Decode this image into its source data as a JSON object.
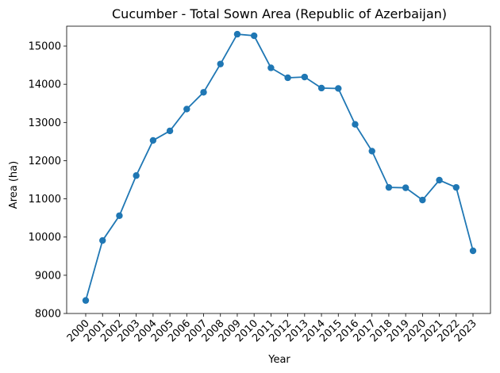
{
  "chart_data": {
    "type": "line",
    "title": "Cucumber - Total Sown Area (Republic of Azerbaijan)",
    "xlabel": "Year",
    "ylabel": "Area (ha)",
    "x": [
      "2000",
      "2001",
      "2002",
      "2003",
      "2004",
      "2005",
      "2006",
      "2007",
      "2008",
      "2009",
      "2010",
      "2011",
      "2012",
      "2013",
      "2014",
      "2015",
      "2016",
      "2017",
      "2018",
      "2019",
      "2020",
      "2021",
      "2022",
      "2023"
    ],
    "series": [
      {
        "values": [
          8340,
          9910,
          10560,
          11610,
          12530,
          12780,
          13350,
          13790,
          14530,
          15310,
          15270,
          14430,
          14170,
          14190,
          13900,
          13890,
          12950,
          12250,
          11300,
          11290,
          10970,
          11490,
          11300,
          9640
        ],
        "color": "#1f77b4"
      }
    ],
    "ylim": [
      8000,
      15520
    ],
    "yticks": [
      8000,
      9000,
      10000,
      11000,
      12000,
      13000,
      14000,
      15000
    ],
    "grid": false,
    "legend": "none"
  }
}
